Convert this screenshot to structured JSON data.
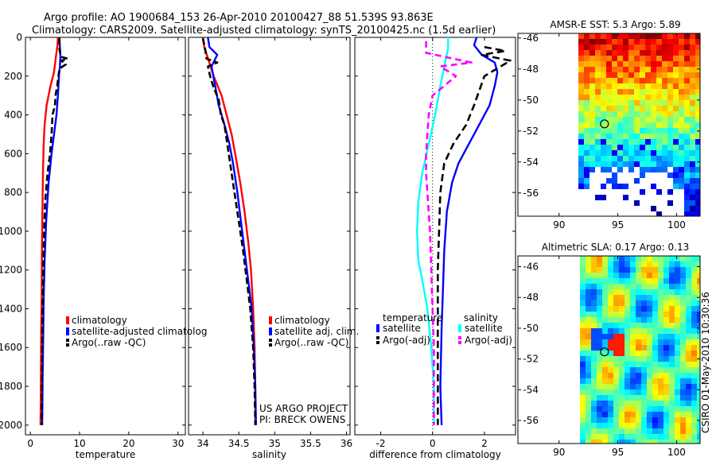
{
  "title": {
    "line1": "Argo profile: AO 1900684_153 26-Apr-2010 20100427_88 51.539S 93.863E",
    "line2": "Climatology: CARS2009. Satellite-adjusted climatology: synTS_20100425.nc (1.5d earlier)"
  },
  "footer": {
    "project": "US ARGO PROJECT",
    "pi": "PI: BRECK OWENS",
    "stamp": "CSIRO 01-May-2010 10:30:36"
  },
  "chart_data": [
    {
      "type": "line",
      "panel": "temperature",
      "xlabel": "temperature",
      "ylabel": "",
      "xlim": [
        -1,
        31.5
      ],
      "ylim": [
        2050,
        0
      ],
      "xticks": [
        0,
        10,
        20,
        30
      ],
      "yticks": [
        0,
        200,
        400,
        600,
        800,
        1000,
        1200,
        1400,
        1600,
        1800,
        2000
      ],
      "legend": [
        "climatology",
        "satellite-adjusted climatolog",
        "Argo(..raw -QC)"
      ],
      "series": [
        {
          "name": "climatology",
          "color": "#ff0000",
          "dash": "",
          "points": [
            [
              5.6,
              0
            ],
            [
              5.5,
              40
            ],
            [
              5.2,
              100
            ],
            [
              4.8,
              180
            ],
            [
              4.1,
              250
            ],
            [
              3.3,
              350
            ],
            [
              2.9,
              450
            ],
            [
              2.7,
              550
            ],
            [
              2.55,
              700
            ],
            [
              2.45,
              900
            ],
            [
              2.35,
              1100
            ],
            [
              2.3,
              1350
            ],
            [
              2.2,
              1500
            ],
            [
              2.15,
              1700
            ],
            [
              2.1,
              1900
            ],
            [
              2.05,
              2000
            ]
          ]
        },
        {
          "name": "satellite-adjusted climatolog",
          "color": "#0000ff",
          "dash": "",
          "points": [
            [
              5.9,
              0
            ],
            [
              6.0,
              50
            ],
            [
              6.1,
              100
            ],
            [
              6.0,
              150
            ],
            [
              5.8,
              200
            ],
            [
              5.6,
              300
            ],
            [
              5.3,
              400
            ],
            [
              4.8,
              500
            ],
            [
              4.3,
              600
            ],
            [
              3.7,
              750
            ],
            [
              3.2,
              950
            ],
            [
              2.9,
              1150
            ],
            [
              2.7,
              1350
            ],
            [
              2.6,
              1550
            ],
            [
              2.5,
              1750
            ],
            [
              2.45,
              1900
            ],
            [
              2.4,
              2000
            ]
          ]
        },
        {
          "name": "Argo(..raw -QC)",
          "color": "#000000",
          "dash": "8,4",
          "points": [
            [
              5.9,
              5
            ],
            [
              5.9,
              60
            ],
            [
              6.2,
              100
            ],
            [
              7.6,
              110
            ],
            [
              6.3,
              120
            ],
            [
              7.2,
              140
            ],
            [
              6.0,
              160
            ],
            [
              5.8,
              180
            ],
            [
              5.6,
              220
            ],
            [
              5.4,
              260
            ],
            [
              5.1,
              300
            ],
            [
              5.0,
              350
            ],
            [
              4.5,
              400
            ],
            [
              4.3,
              500
            ],
            [
              4.0,
              600
            ],
            [
              3.5,
              700
            ],
            [
              3.0,
              850
            ],
            [
              2.8,
              1000
            ],
            [
              2.6,
              1200
            ],
            [
              2.5,
              1400
            ],
            [
              2.4,
              1600
            ],
            [
              2.35,
              1800
            ],
            [
              2.3,
              2000
            ]
          ]
        }
      ]
    },
    {
      "type": "line",
      "panel": "salinity",
      "xlabel": "salinity",
      "ylabel": "",
      "xlim": [
        33.8,
        36.05
      ],
      "ylim": [
        2050,
        0
      ],
      "xticks": [
        34,
        34.5,
        35,
        35.5,
        36
      ],
      "yticks": [
        0,
        200,
        400,
        600,
        800,
        1000,
        1200,
        1400,
        1600,
        1800,
        2000
      ],
      "legend": [
        "climatology",
        "satellite adj. clim.",
        "Argo(..raw -QC)"
      ],
      "series": [
        {
          "name": "climatology",
          "color": "#ff0000",
          "dash": "",
          "points": [
            [
              34.0,
              0
            ],
            [
              34.02,
              50
            ],
            [
              34.08,
              120
            ],
            [
              34.15,
              200
            ],
            [
              34.26,
              300
            ],
            [
              34.33,
              400
            ],
            [
              34.4,
              500
            ],
            [
              34.45,
              600
            ],
            [
              34.52,
              750
            ],
            [
              34.58,
              900
            ],
            [
              34.63,
              1050
            ],
            [
              34.67,
              1200
            ],
            [
              34.7,
              1400
            ],
            [
              34.72,
              1600
            ],
            [
              34.73,
              1800
            ],
            [
              34.73,
              2000
            ]
          ]
        },
        {
          "name": "satellite adj. clim.",
          "color": "#0000ff",
          "dash": "",
          "points": [
            [
              34.07,
              0
            ],
            [
              34.09,
              50
            ],
            [
              34.2,
              90
            ],
            [
              34.12,
              150
            ],
            [
              34.17,
              250
            ],
            [
              34.22,
              350
            ],
            [
              34.3,
              450
            ],
            [
              34.37,
              550
            ],
            [
              34.42,
              650
            ],
            [
              34.48,
              800
            ],
            [
              34.53,
              950
            ],
            [
              34.58,
              1100
            ],
            [
              34.63,
              1250
            ],
            [
              34.68,
              1400
            ],
            [
              34.71,
              1600
            ],
            [
              34.73,
              1800
            ],
            [
              34.74,
              2000
            ]
          ]
        },
        {
          "name": "Argo(..raw -QC)",
          "color": "#000000",
          "dash": "8,4",
          "points": [
            [
              34.0,
              5
            ],
            [
              34.03,
              60
            ],
            [
              34.05,
              110
            ],
            [
              34.2,
              130
            ],
            [
              34.07,
              150
            ],
            [
              34.1,
              200
            ],
            [
              34.15,
              260
            ],
            [
              34.22,
              320
            ],
            [
              34.25,
              400
            ],
            [
              34.3,
              450
            ],
            [
              34.34,
              550
            ],
            [
              34.38,
              650
            ],
            [
              34.44,
              800
            ],
            [
              34.5,
              950
            ],
            [
              34.56,
              1100
            ],
            [
              34.61,
              1250
            ],
            [
              34.66,
              1400
            ],
            [
              34.7,
              1600
            ],
            [
              34.72,
              1800
            ],
            [
              34.73,
              2000
            ]
          ]
        }
      ]
    },
    {
      "type": "line",
      "panel": "difference",
      "xlabel": "difference from climatology",
      "ylabel": "",
      "xlim": [
        -3,
        3.2
      ],
      "ylim": [
        2050,
        0
      ],
      "xticks": [
        -2,
        0,
        2
      ],
      "yticks": [
        0,
        200,
        400,
        600,
        800,
        1000,
        1200,
        1400,
        1600,
        1800,
        2000
      ],
      "legend_titles": [
        "temperature",
        "salinity"
      ],
      "legend": [
        "satellite",
        "Argo(-adj)",
        "satellite",
        "Argo(-adj)"
      ],
      "series": [
        {
          "name": "satellite",
          "group": "temperature",
          "color": "#0000ff",
          "dash": "",
          "points": [
            [
              1.7,
              0
            ],
            [
              1.6,
              40
            ],
            [
              1.9,
              90
            ],
            [
              2.4,
              130
            ],
            [
              2.5,
              180
            ],
            [
              2.4,
              250
            ],
            [
              2.2,
              350
            ],
            [
              1.8,
              450
            ],
            [
              1.4,
              550
            ],
            [
              1.0,
              650
            ],
            [
              0.75,
              750
            ],
            [
              0.55,
              900
            ],
            [
              0.45,
              1100
            ],
            [
              0.4,
              1300
            ],
            [
              0.35,
              1500
            ],
            [
              0.3,
              1800
            ],
            [
              0.35,
              2000
            ]
          ]
        },
        {
          "name": "Argo(-adj)",
          "group": "temperature",
          "color": "#000000",
          "dash": "9,5",
          "points": [
            [
              2.0,
              50
            ],
            [
              2.8,
              70
            ],
            [
              1.9,
              90
            ],
            [
              3.0,
              120
            ],
            [
              2.5,
              160
            ],
            [
              2.0,
              200
            ],
            [
              1.6,
              350
            ],
            [
              1.3,
              450
            ],
            [
              0.8,
              550
            ],
            [
              0.45,
              650
            ],
            [
              0.3,
              800
            ],
            [
              0.25,
              1000
            ],
            [
              0.2,
              1200
            ],
            [
              0.2,
              1400
            ],
            [
              0.2,
              1600
            ],
            [
              0.2,
              1800
            ],
            [
              0.2,
              2000
            ]
          ]
        },
        {
          "name": "satellite",
          "group": "salinity",
          "color": "#00ffff",
          "dash": "",
          "points": [
            [
              0.6,
              0
            ],
            [
              0.6,
              60
            ],
            [
              0.5,
              120
            ],
            [
              0.3,
              250
            ],
            [
              0.1,
              400
            ],
            [
              -0.15,
              550
            ],
            [
              -0.4,
              700
            ],
            [
              -0.55,
              850
            ],
            [
              -0.6,
              1000
            ],
            [
              -0.55,
              1150
            ],
            [
              -0.4,
              1250
            ],
            [
              -0.2,
              1400
            ],
            [
              -0.05,
              1600
            ],
            [
              0.05,
              1800
            ],
            [
              0.05,
              2000
            ]
          ]
        },
        {
          "name": "Argo(-adj)",
          "group": "salinity",
          "color": "#ff00ff",
          "dash": "8,5",
          "points": [
            [
              -0.25,
              20
            ],
            [
              -0.25,
              80
            ],
            [
              1.5,
              130
            ],
            [
              0.3,
              150
            ],
            [
              0.9,
              200
            ],
            [
              0.0,
              300
            ],
            [
              -0.15,
              400
            ],
            [
              -0.2,
              500
            ],
            [
              -0.25,
              600
            ],
            [
              -0.25,
              700
            ],
            [
              -0.2,
              800
            ],
            [
              -0.1,
              1000
            ],
            [
              -0.05,
              1200
            ],
            [
              0.0,
              1400
            ],
            [
              0.05,
              1600
            ],
            [
              0.05,
              1800
            ],
            [
              0.05,
              2000
            ]
          ]
        }
      ]
    },
    {
      "type": "heatmap",
      "panel": "sst-map",
      "title": "AMSR-E SST: 5.3 Argo: 5.89",
      "xlim": [
        86.5,
        102
      ],
      "ylim": [
        -57.5,
        -45.7
      ],
      "xticks": [
        90,
        95,
        100
      ],
      "yticks": [
        -46,
        -48,
        -50,
        -52,
        -54,
        -56
      ],
      "marker": {
        "lon": 93.863,
        "lat": -51.539
      }
    },
    {
      "type": "heatmap",
      "panel": "sla-map",
      "title": "Altimetric SLA: 0.17 Argo: 0.13",
      "xlim": [
        86.5,
        102
      ],
      "ylim": [
        -57.5,
        -45.3
      ],
      "xticks": [
        90,
        95,
        100
      ],
      "yticks": [
        -46,
        -48,
        -50,
        -52,
        -54,
        -56
      ],
      "marker": {
        "lon": 93.863,
        "lat": -51.539
      }
    }
  ]
}
